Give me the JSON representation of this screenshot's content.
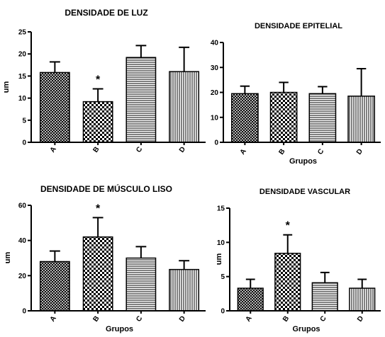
{
  "chart_data": [
    {
      "type": "bar",
      "title": "DENSIDADE DE LUZ",
      "xlabel": "",
      "ylabel": "um",
      "categories": [
        "A",
        "B",
        "C",
        "D"
      ],
      "tick_labels": [
        "A",
        "B",
        "C",
        "D"
      ],
      "values": [
        15.8,
        9.2,
        19.2,
        16.0
      ],
      "errors": [
        2.4,
        2.9,
        2.7,
        5.5
      ],
      "ylim": [
        0,
        25
      ],
      "yticks": [
        0,
        5,
        10,
        15,
        20,
        25
      ],
      "ytick_labels": [
        "0",
        "5",
        "10",
        "15",
        "20",
        "25"
      ],
      "significant": [
        false,
        true,
        false,
        false
      ],
      "marker": "*"
    },
    {
      "type": "bar",
      "title": "DENSIDADE EPITELIAL",
      "xlabel": "Grupos",
      "ylabel": "",
      "categories": [
        "A",
        "B",
        "C",
        "D"
      ],
      "tick_labels": [
        "A",
        "B",
        "C",
        "D"
      ],
      "values": [
        19.5,
        20.0,
        19.5,
        18.5
      ],
      "errors": [
        3.0,
        4.0,
        2.8,
        11.0
      ],
      "ylim": [
        0,
        40
      ],
      "yticks": [
        0,
        10,
        20,
        30,
        40
      ],
      "ytick_labels": [
        "0",
        "10",
        "20",
        "30",
        "40"
      ],
      "significant": [
        false,
        false,
        false,
        false
      ],
      "marker": "*"
    },
    {
      "type": "bar",
      "title": "DENSIDADE DE MÚSCULO LISO",
      "xlabel": "Grupos",
      "ylabel": "um",
      "categories": [
        "A",
        "B",
        "C",
        "D"
      ],
      "tick_labels": [
        "A",
        "B",
        "C",
        "D"
      ],
      "values": [
        28,
        42,
        30,
        23.5
      ],
      "errors": [
        6,
        11,
        6.5,
        5
      ],
      "ylim": [
        0,
        60
      ],
      "yticks": [
        0,
        20,
        40,
        60
      ],
      "ytick_labels": [
        "0",
        "20",
        "40",
        "60"
      ],
      "significant": [
        false,
        true,
        false,
        false
      ],
      "marker": "*"
    },
    {
      "type": "bar",
      "title": "DENSIDADE VASCULAR",
      "xlabel": "Grupos",
      "ylabel": "um",
      "categories": [
        "A",
        "B",
        "C",
        "D"
      ],
      "tick_labels": [
        "A",
        "B",
        "C",
        "D"
      ],
      "values": [
        3.3,
        8.4,
        4.1,
        3.3
      ],
      "errors": [
        1.3,
        2.7,
        1.5,
        1.3
      ],
      "ylim": [
        0,
        15
      ],
      "yticks": [
        0,
        5,
        10,
        15
      ],
      "ytick_labels": [
        "0",
        "5",
        "10",
        "15"
      ],
      "significant": [
        false,
        true,
        false,
        false
      ],
      "marker": "*"
    }
  ],
  "colors": {
    "ink": "#000000",
    "background": "#ffffff"
  },
  "patterns": [
    "diagonal-crosshatch",
    "checkerboard",
    "horizontal-lines",
    "vertical-lines"
  ]
}
